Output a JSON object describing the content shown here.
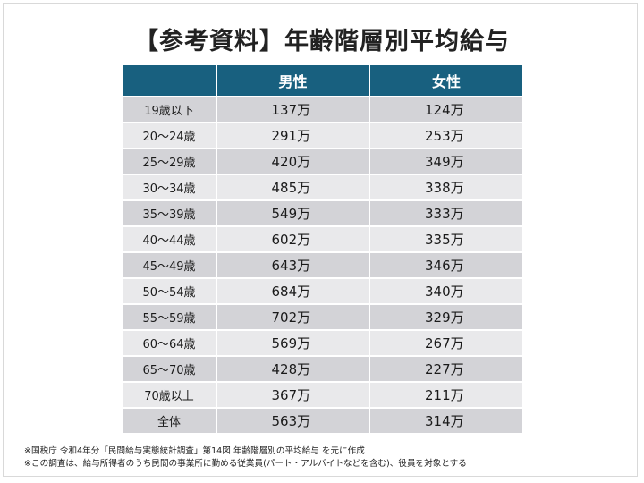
{
  "title": "【参考資料】年齢階層別平均給与",
  "table": {
    "headers": [
      "",
      "男性",
      "女性"
    ],
    "rows": [
      {
        "age": "19歳以下",
        "male": "137万",
        "female": "124万"
      },
      {
        "age": "20〜24歳",
        "male": "291万",
        "female": "253万"
      },
      {
        "age": "25〜29歳",
        "male": "420万",
        "female": "349万"
      },
      {
        "age": "30〜34歳",
        "male": "485万",
        "female": "338万"
      },
      {
        "age": "35〜39歳",
        "male": "549万",
        "female": "333万"
      },
      {
        "age": "40〜44歳",
        "male": "602万",
        "female": "335万"
      },
      {
        "age": "45〜49歳",
        "male": "643万",
        "female": "346万"
      },
      {
        "age": "50〜54歳",
        "male": "684万",
        "female": "340万"
      },
      {
        "age": "55〜59歳",
        "male": "702万",
        "female": "329万"
      },
      {
        "age": "60〜64歳",
        "male": "569万",
        "female": "267万"
      },
      {
        "age": "65〜70歳",
        "male": "428万",
        "female": "227万"
      },
      {
        "age": "70歳以上",
        "male": "367万",
        "female": "211万"
      },
      {
        "age": "全体",
        "male": "563万",
        "female": "314万"
      }
    ]
  },
  "notes": [
    "※国税庁 令和4年分「民間給与実態統計調査」第14図 年齢階層別の平均給与 を元に作成",
    "※この調査は、給与所得者のうち民間の事業所に勤める従業員(パート・アルバイトなどを含む)、役員を対象とする"
  ],
  "colors": {
    "header_bg": "#18607f",
    "row_dark": "#d3d3d7",
    "row_light": "#e9e9eb"
  }
}
